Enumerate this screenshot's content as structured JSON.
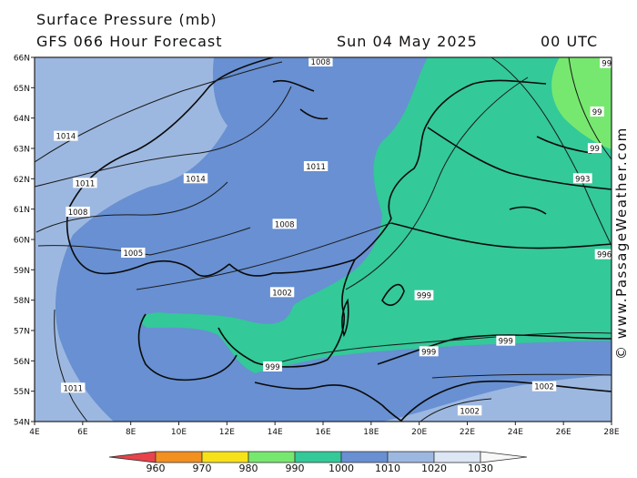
{
  "header": {
    "title": "Surface Pressure (mb)",
    "forecast": "GFS 066 Hour Forecast",
    "date": "Sun 04 May 2025",
    "time": "00 UTC"
  },
  "credit": "© www.PassageWeather.com",
  "map": {
    "lat_labels": [
      "66N",
      "65N",
      "64N",
      "63N",
      "62N",
      "61N",
      "60N",
      "59N",
      "58N",
      "57N",
      "56N",
      "55N",
      "54N"
    ],
    "lon_labels": [
      "4E",
      "6E",
      "8E",
      "10E",
      "12E",
      "14E",
      "16E",
      "18E",
      "20E",
      "22E",
      "24E",
      "26E",
      "28E"
    ],
    "isobar_labels": [
      {
        "text": "1008",
        "lon": 15.9,
        "lat": 65.85
      },
      {
        "text": "1014",
        "lon": 5.3,
        "lat": 63.4
      },
      {
        "text": "1014",
        "lon": 10.7,
        "lat": 62.0
      },
      {
        "text": "1011",
        "lon": 6.1,
        "lat": 61.85
      },
      {
        "text": "1011",
        "lon": 15.7,
        "lat": 62.4
      },
      {
        "text": "1008",
        "lon": 5.8,
        "lat": 60.9
      },
      {
        "text": "1008",
        "lon": 14.4,
        "lat": 60.5
      },
      {
        "text": "1005",
        "lon": 8.1,
        "lat": 59.55
      },
      {
        "text": "1002",
        "lon": 14.3,
        "lat": 58.25
      },
      {
        "text": "999",
        "lon": 20.2,
        "lat": 58.15
      },
      {
        "text": "999",
        "lon": 13.9,
        "lat": 55.8
      },
      {
        "text": "999",
        "lon": 23.6,
        "lat": 56.65
      },
      {
        "text": "999",
        "lon": 20.4,
        "lat": 56.3
      },
      {
        "text": "1011",
        "lon": 5.6,
        "lat": 55.1
      },
      {
        "text": "1002",
        "lon": 25.2,
        "lat": 55.15
      },
      {
        "text": "1002",
        "lon": 22.1,
        "lat": 54.35
      },
      {
        "text": "996",
        "lon": 27.7,
        "lat": 59.5
      },
      {
        "text": "993",
        "lon": 26.8,
        "lat": 62.0
      },
      {
        "text": "99",
        "lon": 27.4,
        "lat": 64.2
      },
      {
        "text": "99",
        "lon": 27.3,
        "lat": 63.0
      },
      {
        "text": "99",
        "lon": 27.8,
        "lat": 65.8
      }
    ]
  },
  "legend": {
    "labels": [
      "960",
      "970",
      "980",
      "990",
      "1000",
      "1010",
      "1020",
      "1030"
    ],
    "colors": [
      "#e8434b",
      "#f29020",
      "#f7e21a",
      "#77e86f",
      "#33c998",
      "#6890d2",
      "#9db8e0",
      "#dce6f4",
      "#f8f8f8"
    ]
  }
}
